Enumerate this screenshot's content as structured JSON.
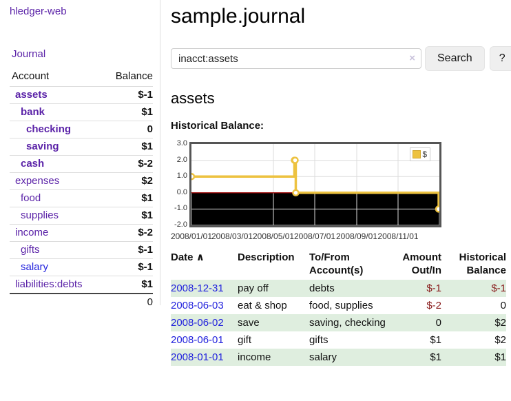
{
  "colors": {
    "accent_purple": "#5b23a8",
    "link_blue": "#2222dd",
    "negative_strong": "#871919",
    "negative_soft": "#c67373",
    "row_highlight_green": "#dfeedf",
    "chart_series_gold": "#EDC240",
    "chart_zero_line": "#990000",
    "chart_negative_fill": "#f8dcdc"
  },
  "sidebar": {
    "app_title": "hledger-web",
    "journal_label": "Journal",
    "accounts": {
      "header_account": "Account",
      "header_balance": "Balance",
      "rows": [
        {
          "name": "assets",
          "level": 0,
          "bold": true,
          "color": "purple",
          "balance": "$-1",
          "balance_style": "neg-bold"
        },
        {
          "name": "bank",
          "level": 1,
          "bold": true,
          "color": "purple",
          "balance": "$1",
          "balance_style": "black"
        },
        {
          "name": "checking",
          "level": 2,
          "bold": true,
          "color": "purple",
          "balance": "0",
          "balance_style": "black"
        },
        {
          "name": "saving",
          "level": 2,
          "bold": true,
          "color": "purple",
          "balance": "$1",
          "balance_style": "black"
        },
        {
          "name": "cash",
          "level": 1,
          "bold": true,
          "color": "purple",
          "balance": "$-2",
          "balance_style": "neg-bold"
        },
        {
          "name": "expenses",
          "level": 0,
          "bold": false,
          "color": "purple",
          "balance": "$2",
          "balance_style": "black"
        },
        {
          "name": "food",
          "level": 1,
          "bold": false,
          "color": "purple",
          "balance": "$1",
          "balance_style": "black"
        },
        {
          "name": "supplies",
          "level": 1,
          "bold": false,
          "color": "purple",
          "balance": "$1",
          "balance_style": "black"
        },
        {
          "name": "income",
          "level": 0,
          "bold": false,
          "color": "purple",
          "balance": "$-2",
          "balance_style": "rose"
        },
        {
          "name": "gifts",
          "level": 1,
          "bold": false,
          "color": "purple",
          "balance": "$-1",
          "balance_style": "rose"
        },
        {
          "name": "salary",
          "level": 1,
          "bold": false,
          "color": "blue",
          "balance": "$-1",
          "balance_style": "rose"
        },
        {
          "name": "liabilities:debts",
          "level": 0,
          "bold": false,
          "color": "purple",
          "balance": "$1",
          "balance_style": "black"
        }
      ],
      "total": "0"
    }
  },
  "main": {
    "title": "sample.journal",
    "search": {
      "value": "inacct:assets",
      "clear_icon": "×",
      "button_label": "Search",
      "help_label": "?"
    },
    "account_heading": "assets",
    "register": {
      "headers": {
        "date": "Date",
        "sort_arrow": "∧",
        "description": "Description",
        "account_line1": "To/From",
        "account_line2": "Account(s)",
        "amount_line1": "Amount",
        "amount_line2": "Out/In",
        "balance_line1": "Historical",
        "balance_line2": "Balance"
      },
      "rows": [
        {
          "date": "2008-12-31",
          "description": "pay off",
          "accounts": "debts",
          "amount": "$-1",
          "amount_negative": true,
          "balance": "$-1",
          "balance_negative": true
        },
        {
          "date": "2008-06-03",
          "description": "eat & shop",
          "accounts": "food, supplies",
          "amount": "$-2",
          "amount_negative": true,
          "balance": "0",
          "balance_negative": false
        },
        {
          "date": "2008-06-02",
          "description": "save",
          "accounts": "saving, checking",
          "amount": "0",
          "amount_negative": false,
          "balance": "$2",
          "balance_negative": false
        },
        {
          "date": "2008-06-01",
          "description": "gift",
          "accounts": "gifts",
          "amount": "$1",
          "amount_negative": false,
          "balance": "$2",
          "balance_negative": false
        },
        {
          "date": "2008-01-01",
          "description": "income",
          "accounts": "salary",
          "amount": "$1",
          "amount_negative": false,
          "balance": "$1",
          "balance_negative": false
        }
      ]
    }
  },
  "chart_data": {
    "type": "line",
    "subtype": "step",
    "title": "Historical Balance:",
    "series": [
      {
        "name": "$",
        "color": "#EDC240",
        "points": [
          {
            "date": "2008/01/01",
            "value": 1
          },
          {
            "date": "2008/06/01",
            "value": 2
          },
          {
            "date": "2008/06/02",
            "value": 2
          },
          {
            "date": "2008/06/03",
            "value": 0
          },
          {
            "date": "2008/12/31",
            "value": -1
          }
        ]
      }
    ],
    "x_range": [
      "2008/01/01",
      "2009/01/01"
    ],
    "x_ticks": [
      "2008/01/01",
      "2008/03/01",
      "2008/05/01",
      "2008/07/01",
      "2008/09/01",
      "2008/11/01"
    ],
    "y_ticks": [
      3.0,
      2.0,
      1.0,
      0.0,
      -1.0,
      -2.0
    ],
    "ylim": [
      -2,
      3
    ],
    "grid": true,
    "legend": {
      "label": "$",
      "position": "top-right"
    }
  }
}
